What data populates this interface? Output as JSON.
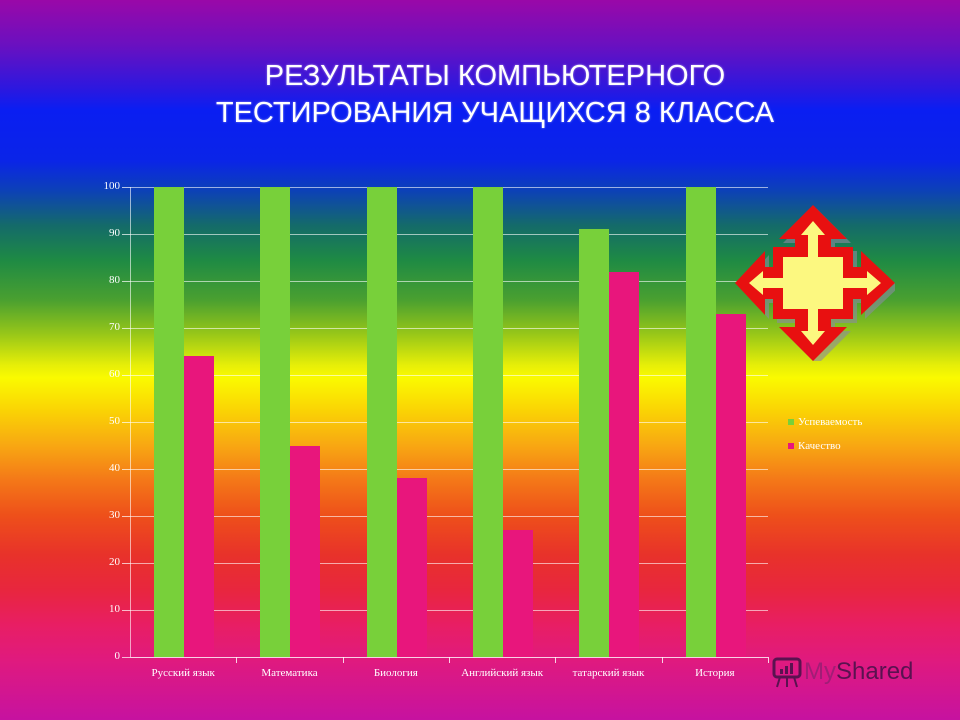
{
  "slide": {
    "title_line1": "РЕЗУЛЬТАТЫ КОМПЬЮТЕРНОГО",
    "title_line2": "ТЕСТИРОВАНИЯ УЧАЩИХСЯ 8 КЛАССА",
    "watermark_prefix": "My",
    "watermark_suffix": "Shared"
  },
  "colors": {
    "series_green": "#78d03a",
    "series_pink": "#e8167c",
    "arrow_red": "#e81010",
    "arrow_fill": "#fcf880"
  },
  "chart_data": {
    "type": "bar",
    "title": "РЕЗУЛЬТАТЫ КОМПЬЮТЕРНОГО ТЕСТИРОВАНИЯ УЧАЩИХСЯ 8 КЛАССА",
    "categories": [
      "Русский язык",
      "Математика",
      "Биология",
      "Английский язык",
      "татарский язык",
      "История"
    ],
    "series": [
      {
        "name": "Успеваемость",
        "color": "#78d03a",
        "values": [
          100,
          100,
          100,
          100,
          91,
          100
        ]
      },
      {
        "name": "Качество",
        "color": "#e8167c",
        "values": [
          64,
          45,
          38,
          27,
          82,
          73
        ]
      }
    ],
    "xlabel": "",
    "ylabel": "",
    "ylim": [
      0,
      100
    ],
    "yticks": [
      "0",
      "10",
      "20",
      "30",
      "40",
      "50",
      "60",
      "70",
      "80",
      "90",
      "100"
    ],
    "grid": true,
    "legend_position": "right"
  }
}
